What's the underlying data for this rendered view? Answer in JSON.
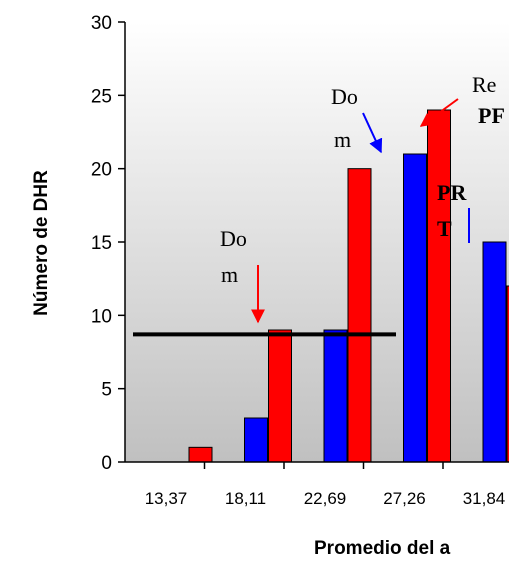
{
  "chart_data": {
    "type": "bar",
    "xlabel": "Promedio del a",
    "ylabel": "Número de DHR",
    "ylim": [
      0,
      30
    ],
    "yticks": [
      0,
      5,
      10,
      15,
      20,
      25,
      30
    ],
    "categories": [
      "13,37",
      "18,11",
      "22,69",
      "27,26",
      "31,84"
    ],
    "series": [
      {
        "color": "#0000ff",
        "values": [
          0,
          3,
          9,
          21,
          15
        ]
      },
      {
        "color": "#ff0000",
        "values": [
          1,
          9,
          20,
          24,
          12
        ]
      }
    ],
    "reference_line": {
      "value": 8.7,
      "color": "#000000"
    },
    "background_gradient": [
      "#ffffff",
      "#c0c0c0"
    ],
    "annotations": [
      {
        "lines": [
          "Do",
          "m"
        ],
        "arrow_color": "#ff0000"
      },
      {
        "lines": [
          "Do",
          "m"
        ],
        "arrow_color": "#0000ff"
      },
      {
        "lines": [
          "Re",
          "PF"
        ],
        "bold_lines": [
          1
        ],
        "arrow_color": "#ff0000"
      },
      {
        "lines": [
          "PR",
          "T"
        ],
        "bold_lines": [
          0,
          1
        ],
        "arrow_color": "#0000ff"
      }
    ]
  }
}
